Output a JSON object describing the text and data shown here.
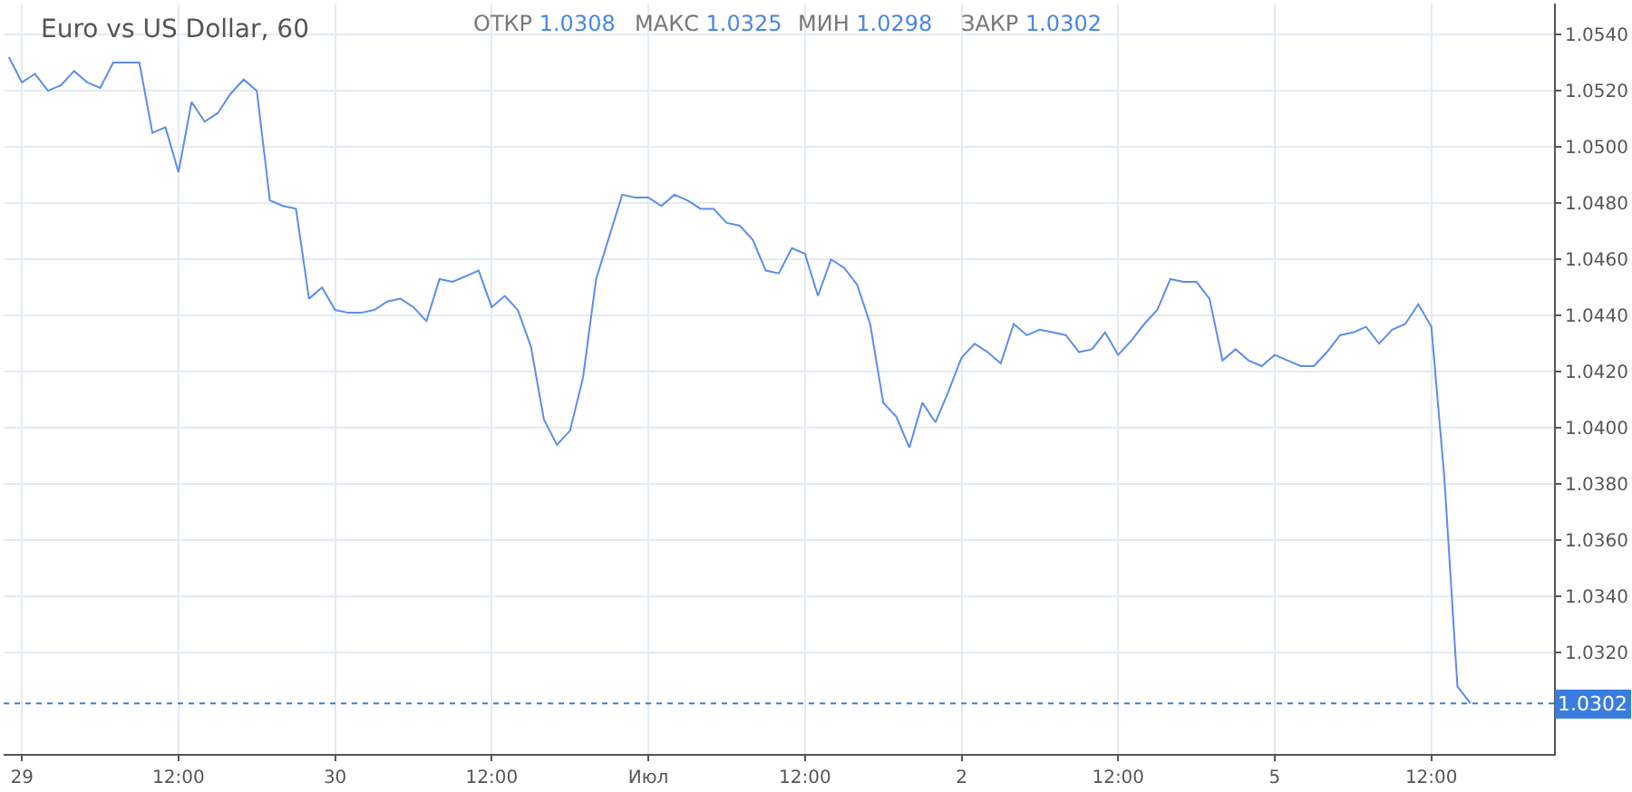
{
  "chart_data": {
    "type": "line",
    "title": "Euro vs US Dollar, 60",
    "annotations": [
      "ОТКР 1.0308",
      "МАКС 1.0325",
      "МИН 1.0298",
      "ЗАКР 1.0302"
    ],
    "categories": [
      null,
      "29",
      null,
      null,
      null,
      null,
      null,
      null,
      null,
      null,
      null,
      null,
      null,
      "12:00",
      null,
      null,
      null,
      null,
      null,
      null,
      null,
      null,
      null,
      null,
      null,
      "30",
      null,
      null,
      null,
      null,
      null,
      null,
      null,
      null,
      null,
      null,
      null,
      "12:00",
      null,
      null,
      null,
      null,
      null,
      null,
      null,
      null,
      null,
      null,
      null,
      "Июл",
      null,
      null,
      null,
      null,
      null,
      null,
      null,
      null,
      null,
      null,
      null,
      "12:00",
      null,
      null,
      null,
      null,
      null,
      null,
      null,
      null,
      null,
      null,
      null,
      "2",
      null,
      null,
      null,
      null,
      null,
      null,
      null,
      null,
      null,
      null,
      null,
      "12:00",
      null,
      null,
      null,
      null,
      null,
      null,
      null,
      null,
      null,
      null,
      null,
      "5",
      null,
      null,
      null,
      null,
      null,
      null,
      null,
      null,
      null,
      null,
      null,
      "12:00",
      null,
      null,
      null
    ],
    "series": [
      {
        "color": "#5b8ded",
        "values": [
          1.0532,
          1.0523,
          1.0526,
          1.052,
          1.0522,
          1.0527,
          1.0523,
          1.0521,
          1.053,
          1.053,
          1.053,
          1.0505,
          1.0507,
          1.0491,
          1.0516,
          1.0509,
          1.0512,
          1.0519,
          1.0524,
          1.052,
          1.0481,
          1.0479,
          1.0478,
          1.0446,
          1.045,
          1.0442,
          1.0441,
          1.0441,
          1.0442,
          1.0445,
          1.0446,
          1.0443,
          1.0438,
          1.0453,
          1.0452,
          1.0454,
          1.0456,
          1.0443,
          1.0447,
          1.0442,
          1.0429,
          1.0403,
          1.0394,
          1.0399,
          1.0418,
          1.0453,
          1.0468,
          1.0483,
          1.0482,
          1.0482,
          1.0479,
          1.0483,
          1.0481,
          1.0478,
          1.0478,
          1.0473,
          1.0472,
          1.0467,
          1.0456,
          1.0455,
          1.0464,
          1.0462,
          1.0447,
          1.046,
          1.0457,
          1.0451,
          1.0437,
          1.0409,
          1.0404,
          1.0393,
          1.0409,
          1.0402,
          1.0413,
          1.0425,
          1.043,
          1.0427,
          1.0423,
          1.0437,
          1.0433,
          1.0435,
          1.0434,
          1.0433,
          1.0427,
          1.0428,
          1.0434,
          1.0426,
          1.0431,
          1.0437,
          1.0442,
          1.0453,
          1.0452,
          1.0452,
          1.0446,
          1.0424,
          1.0428,
          1.0424,
          1.0422,
          1.0426,
          1.0424,
          1.0422,
          1.0422,
          1.0427,
          1.0433,
          1.0434,
          1.0436,
          1.043,
          1.0435,
          1.0437,
          1.0444,
          1.0436,
          1.0382,
          1.0308,
          1.0302
        ]
      }
    ],
    "ylim": [
      1.0284,
      1.0551
    ],
    "yticks": [
      {
        "value": 1.032,
        "label": "1.0320"
      },
      {
        "value": 1.034,
        "label": "1.0340"
      },
      {
        "value": 1.036,
        "label": "1.0360"
      },
      {
        "value": 1.038,
        "label": "1.0380"
      },
      {
        "value": 1.04,
        "label": "1.0400"
      },
      {
        "value": 1.042,
        "label": "1.0420"
      },
      {
        "value": 1.044,
        "label": "1.0440"
      },
      {
        "value": 1.046,
        "label": "1.0460"
      },
      {
        "value": 1.048,
        "label": "1.0480"
      },
      {
        "value": 1.05,
        "label": "1.0500"
      },
      {
        "value": 1.052,
        "label": "1.0520"
      },
      {
        "value": 1.054,
        "label": "1.0540"
      }
    ],
    "ref_lines": [
      {
        "axis": "y",
        "value": 1.0302,
        "label": "1.0302",
        "color": "#3a7de0",
        "line_style": "dotted"
      }
    ],
    "grid": true,
    "marker": "none",
    "line_style": "solid"
  }
}
